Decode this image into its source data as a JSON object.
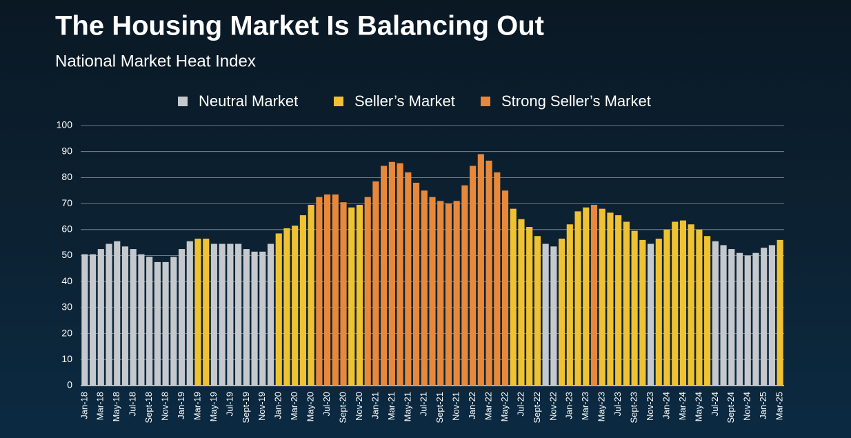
{
  "chart_data": {
    "type": "bar",
    "title": "The Housing Market Is Balancing Out",
    "subtitle": "National Market Heat Index",
    "categories": [
      "Jan-18",
      null,
      "Mar-18",
      null,
      "May-18",
      null,
      "Jul-18",
      null,
      "Sept-18",
      null,
      "Nov-18",
      null,
      "Jan-19",
      null,
      "Mar-19",
      null,
      "May-19",
      null,
      "Jul-19",
      null,
      "Sept-19",
      null,
      "Nov-19",
      null,
      "Jan-20",
      null,
      "Mar-20",
      null,
      "May-20",
      null,
      "Jul-20",
      null,
      "Sept-20",
      null,
      "Nov-20",
      null,
      "Jan-21",
      null,
      "Mar-21",
      null,
      "May-21",
      null,
      "Jul-21",
      null,
      "Sept-21",
      null,
      "Nov-21",
      null,
      "Jan-22",
      null,
      "Mar-22",
      null,
      "May-22",
      null,
      "Jul-22",
      null,
      "Sept-22",
      null,
      "Nov-22",
      null,
      "Jan-23",
      null,
      "Mar-23",
      null,
      "May-23",
      null,
      "Jul-23",
      null,
      "Sept-23",
      null,
      "Nov-23",
      null,
      "Jan-24",
      null,
      "Mar-24",
      null,
      "May-24",
      null,
      "Jul-24",
      null,
      "Sept-24",
      null,
      "Nov-24",
      null,
      "Jan-25",
      null,
      "Mar-25"
    ],
    "series": [
      {
        "name": "Neutral Market",
        "color": "#c5c9cd",
        "values": [
          50.5,
          50.5,
          52.5,
          54.5,
          55.5,
          53.5,
          52.5,
          50.5,
          49.5,
          47.5,
          47.5,
          49.5,
          52.5,
          55.5,
          null,
          null,
          54.5,
          54.5,
          54.5,
          54.5,
          52.5,
          51.5,
          51.5,
          54.5,
          null,
          null,
          null,
          null,
          null,
          null,
          null,
          null,
          null,
          null,
          null,
          null,
          null,
          null,
          null,
          null,
          null,
          null,
          null,
          null,
          null,
          null,
          null,
          null,
          null,
          null,
          null,
          null,
          null,
          null,
          null,
          null,
          null,
          54.5,
          53.5,
          null,
          null,
          null,
          null,
          null,
          null,
          null,
          null,
          null,
          null,
          null,
          54.5,
          null,
          null,
          null,
          null,
          null,
          null,
          null,
          55.5,
          54,
          52.5,
          51,
          50,
          51,
          53,
          54,
          null
        ]
      },
      {
        "name": "Seller’s Market",
        "color": "#f0c232",
        "values": [
          null,
          null,
          null,
          null,
          null,
          null,
          null,
          null,
          null,
          null,
          null,
          null,
          null,
          null,
          56.5,
          56.5,
          null,
          null,
          null,
          null,
          null,
          null,
          null,
          null,
          58.5,
          60.5,
          61.5,
          65.5,
          69.5,
          null,
          null,
          null,
          null,
          68.5,
          69.5,
          null,
          null,
          null,
          null,
          null,
          null,
          null,
          null,
          null,
          null,
          null,
          null,
          null,
          null,
          null,
          null,
          null,
          null,
          68,
          64,
          61,
          57.5,
          null,
          null,
          56.5,
          62,
          67,
          68.5,
          null,
          68,
          66.5,
          65.5,
          63,
          59.5,
          56,
          null,
          56.5,
          60,
          63,
          63.5,
          62,
          60,
          57.5,
          null,
          null,
          null,
          null,
          null,
          null,
          null,
          null,
          56
        ]
      },
      {
        "name": "Strong Seller’s Market",
        "color": "#e8883a",
        "values": [
          null,
          null,
          null,
          null,
          null,
          null,
          null,
          null,
          null,
          null,
          null,
          null,
          null,
          null,
          null,
          null,
          null,
          null,
          null,
          null,
          null,
          null,
          null,
          null,
          null,
          null,
          null,
          null,
          null,
          72.5,
          73.5,
          73.5,
          70.5,
          null,
          null,
          72.5,
          78.5,
          84.5,
          86,
          85.5,
          82,
          78,
          75,
          72.5,
          71,
          70,
          71,
          77,
          84.5,
          89,
          86.5,
          82,
          75,
          null,
          null,
          null,
          null,
          null,
          null,
          null,
          null,
          null,
          null,
          69.5,
          null,
          null,
          null,
          null,
          null,
          null,
          null,
          null,
          null,
          null,
          null,
          null,
          null,
          null,
          null,
          null,
          null,
          null,
          null,
          null,
          null,
          null,
          null
        ]
      }
    ],
    "ylim": [
      0,
      100
    ],
    "yticks": [
      0,
      10,
      20,
      30,
      40,
      50,
      60,
      70,
      80,
      90,
      100
    ],
    "grid": true
  }
}
